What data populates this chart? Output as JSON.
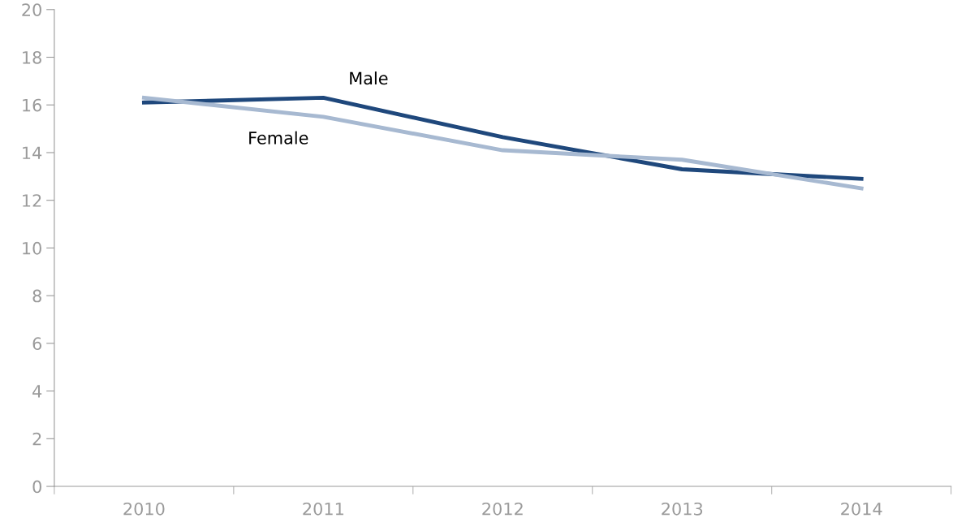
{
  "chart_data": {
    "type": "line",
    "categories": [
      "2010",
      "2011",
      "2012",
      "2013",
      "2014"
    ],
    "series": [
      {
        "name": "Male",
        "color": "#1f487c",
        "values": [
          16.1,
          16.3,
          14.65,
          13.3,
          12.9
        ]
      },
      {
        "name": "Female",
        "color": "#a7b9d1",
        "values": [
          16.3,
          15.5,
          14.1,
          13.7,
          12.5
        ]
      }
    ],
    "ylim": [
      0,
      20
    ],
    "yticks": [
      0,
      2,
      4,
      6,
      8,
      10,
      12,
      14,
      16,
      18,
      20
    ],
    "grid": false,
    "legend": false,
    "marker": "none",
    "line_style": "solid"
  }
}
